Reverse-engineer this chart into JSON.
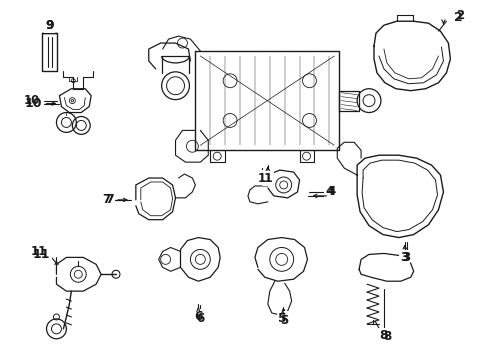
{
  "title": "",
  "background_color": "#ffffff",
  "line_color": "#1a1a1a",
  "fig_width": 4.89,
  "fig_height": 3.6,
  "dpi": 100
}
